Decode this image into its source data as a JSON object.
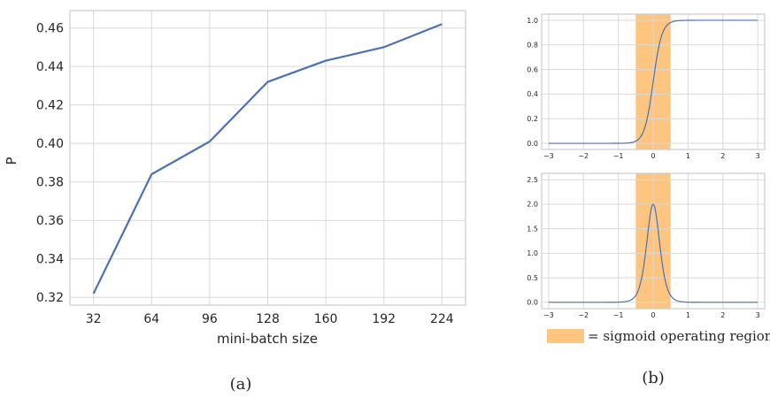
{
  "figure": {
    "panel_a_caption": "(a)",
    "panel_b_caption": "(b)",
    "legend_label": "= sigmoid operating region",
    "colors": {
      "line": "#4c72b0",
      "highlight": "#fdc57f",
      "grid": "#d9d9d9",
      "axes": "#cccccc",
      "text": "#262626"
    }
  },
  "chart_data": [
    {
      "id": "a",
      "type": "line",
      "xlabel": "mini-batch size",
      "ylabel": "P",
      "x": [
        32,
        64,
        96,
        128,
        160,
        192,
        224
      ],
      "xticks": [
        "32",
        "64",
        "96",
        "128",
        "160",
        "192",
        "224"
      ],
      "series": [
        {
          "values": [
            0.322,
            0.384,
            0.401,
            0.432,
            0.443,
            0.45,
            0.462
          ]
        }
      ],
      "yticks": [
        "0.32",
        "0.34",
        "0.36",
        "0.38",
        "0.40",
        "0.42",
        "0.44",
        "0.46"
      ],
      "ylim": [
        0.316,
        0.469
      ],
      "xlim": [
        19,
        237
      ],
      "grid": true
    },
    {
      "id": "b-top",
      "type": "line",
      "function": "sigmoid(8x)",
      "x_range": [
        -3,
        3
      ],
      "xticks": [
        "−3",
        "−2",
        "−1",
        "0",
        "1",
        "2",
        "3"
      ],
      "yticks": [
        "0.0",
        "0.2",
        "0.4",
        "0.6",
        "0.8",
        "1.0"
      ],
      "xlim": [
        -3.2,
        3.2
      ],
      "ylim": [
        -0.05,
        1.05
      ],
      "highlight_region": [
        -0.5,
        0.5
      ],
      "grid": true
    },
    {
      "id": "b-bottom",
      "type": "line",
      "function": "8·sigmoid(8x)·(1−sigmoid(8x))",
      "x_range": [
        -3,
        3
      ],
      "xticks": [
        "−3",
        "−2",
        "−1",
        "0",
        "1",
        "2",
        "3"
      ],
      "yticks": [
        "0.0",
        "0.5",
        "1.0",
        "1.5",
        "2.0",
        "2.5"
      ],
      "xlim": [
        -3.2,
        3.2
      ],
      "ylim": [
        -0.13,
        2.63
      ],
      "highlight_region": [
        -0.5,
        0.5
      ],
      "grid": true
    }
  ]
}
